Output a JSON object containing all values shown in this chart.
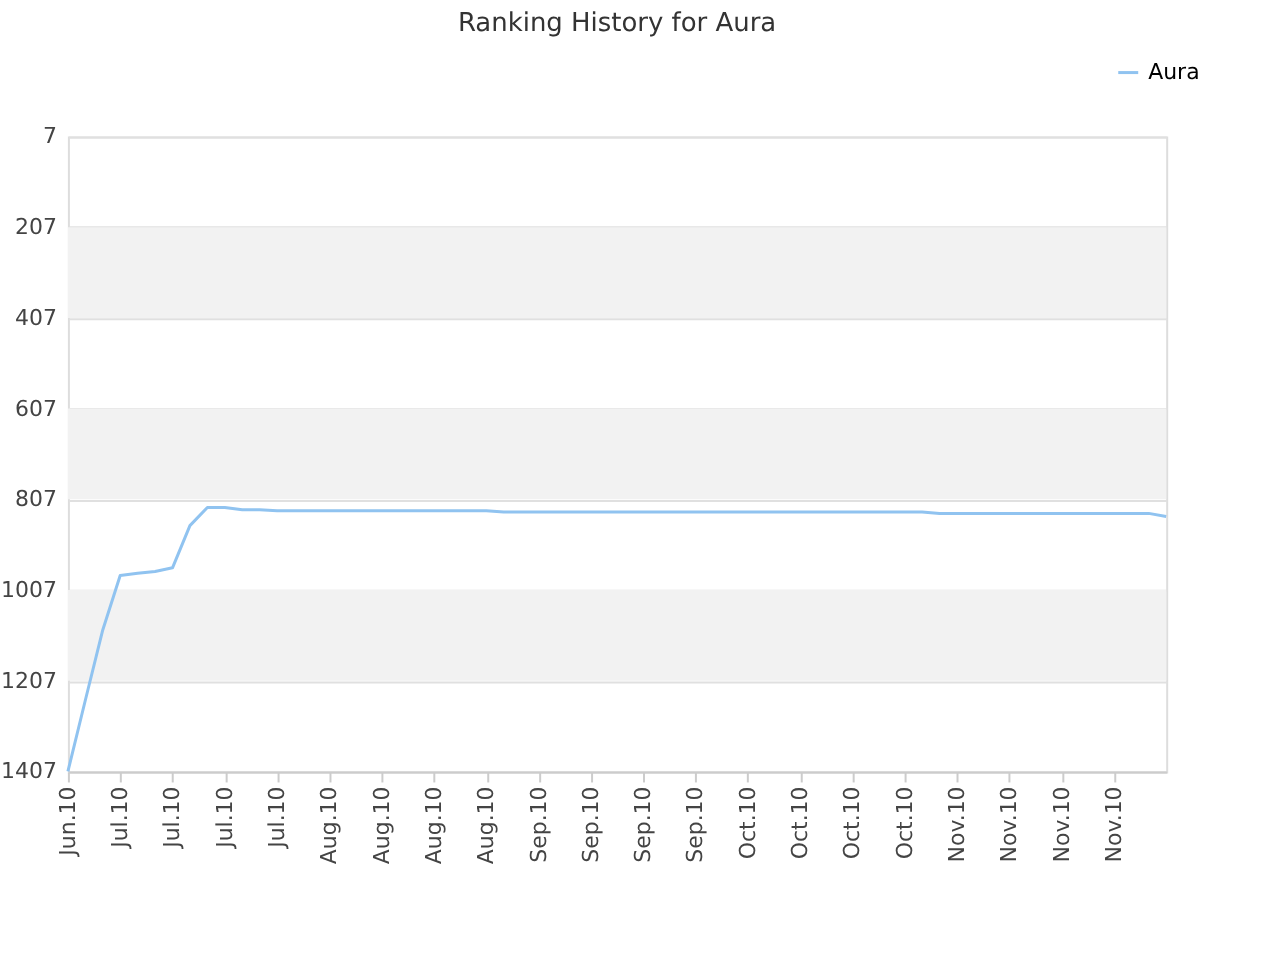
{
  "chart_data": {
    "type": "line",
    "title": "Ranking History for Aura",
    "categories": [
      "Jun.10",
      null,
      null,
      "Jul.10",
      null,
      null,
      "Jul.10",
      null,
      null,
      "Jul.10",
      null,
      null,
      "Jul.10",
      null,
      null,
      "Aug.10",
      null,
      null,
      "Aug.10",
      null,
      null,
      "Aug.10",
      null,
      null,
      "Aug.10",
      null,
      null,
      "Sep.10",
      null,
      null,
      "Sep.10",
      null,
      null,
      "Sep.10",
      null,
      null,
      "Sep.10",
      null,
      null,
      "Oct.10",
      null,
      null,
      "Oct.10",
      null,
      null,
      "Oct.10",
      null,
      null,
      "Oct.10",
      null,
      null,
      "Nov.10",
      null,
      null,
      "Nov.10",
      null,
      null,
      "Nov.10",
      null,
      null,
      "Nov.10",
      null,
      null,
      null
    ],
    "series": [
      {
        "name": "Aura",
        "color": "#90c3f0",
        "values": [
          1407,
          1250,
          1095,
          975,
          970,
          966,
          958,
          865,
          825,
          825,
          830,
          830,
          832,
          832,
          832,
          832,
          832,
          832,
          832,
          832,
          832,
          832,
          832,
          832,
          832,
          835,
          835,
          835,
          835,
          835,
          835,
          835,
          835,
          835,
          835,
          835,
          835,
          835,
          835,
          835,
          835,
          835,
          835,
          835,
          835,
          835,
          835,
          835,
          835,
          835,
          838,
          838,
          838,
          838,
          838,
          838,
          838,
          838,
          838,
          838,
          838,
          838,
          838,
          845
        ]
      }
    ],
    "ylim": [
      1407,
      7
    ],
    "yticks": [
      7,
      207,
      407,
      607,
      807,
      1007,
      1207,
      1407
    ],
    "bands": [
      {
        "axis": "y",
        "from": 207,
        "to": 407,
        "color": "#f2f2f2"
      },
      {
        "axis": "y",
        "from": 607,
        "to": 807,
        "color": "#f2f2f2"
      },
      {
        "axis": "y",
        "from": 1007,
        "to": 1207,
        "color": "#f2f2f2"
      }
    ],
    "grid": "y",
    "legend": "top right",
    "marker": "none",
    "line_style": "solid"
  }
}
